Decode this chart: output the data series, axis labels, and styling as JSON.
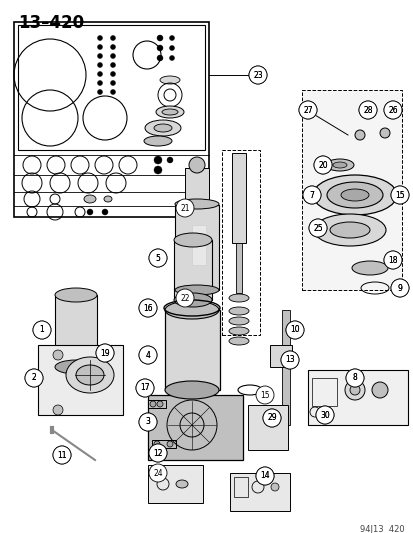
{
  "title": "13-420",
  "footer": "94J13  420",
  "bg_color": "#ffffff",
  "fig_width": 4.14,
  "fig_height": 5.33,
  "dpi": 100
}
